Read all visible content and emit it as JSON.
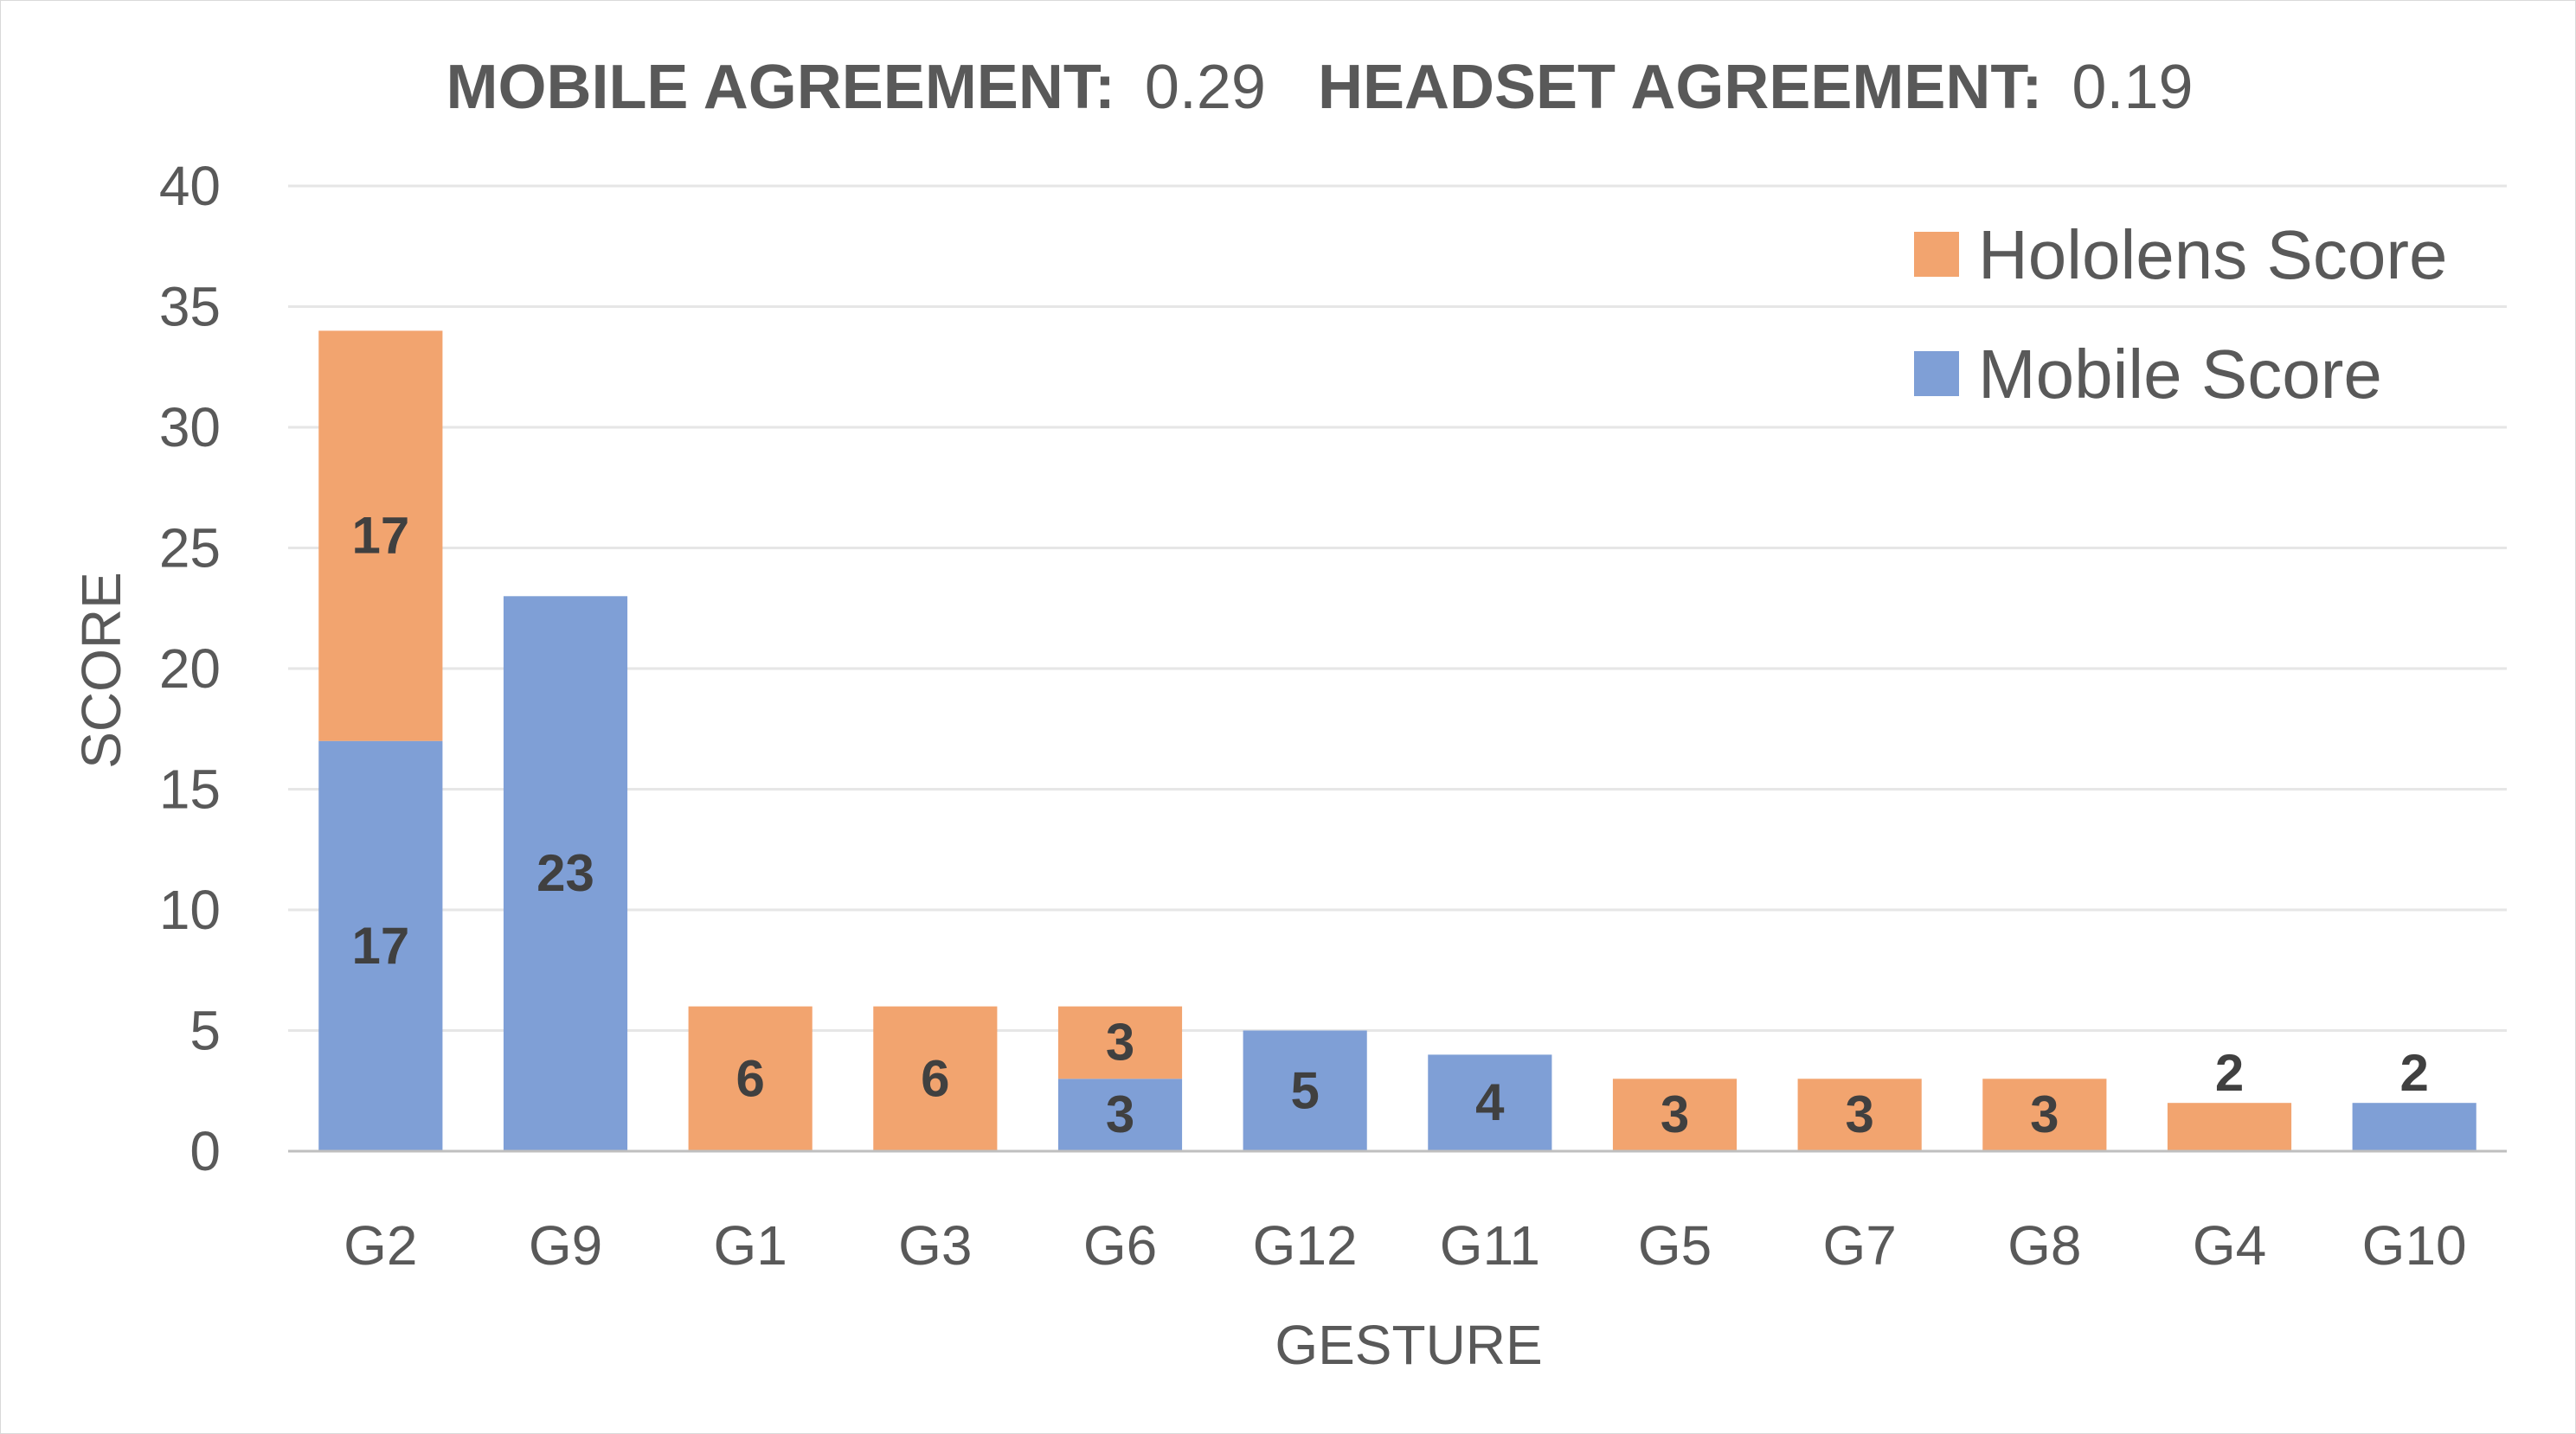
{
  "title": {
    "mobile_label": "MOBILE AGREEMENT:",
    "mobile_value": "0.29",
    "headset_label": "HEADSET AGREEMENT:",
    "headset_value": "0.19"
  },
  "colors": {
    "mobile": "#7f9fd6",
    "hololens": "#f2a46f",
    "gridline": "#e6e6e6",
    "axis": "#bfbfbf",
    "text": "#595959",
    "label": "#404040"
  },
  "chart_data": {
    "type": "bar",
    "stacked": true,
    "categories": [
      "G2",
      "G9",
      "G1",
      "G3",
      "G6",
      "G12",
      "G11",
      "G5",
      "G7",
      "G8",
      "G4",
      "G10"
    ],
    "series": [
      {
        "name": "Mobile Score",
        "values": [
          17,
          23,
          0,
          0,
          3,
          5,
          4,
          0,
          0,
          0,
          0,
          2
        ]
      },
      {
        "name": "Hololens Score",
        "values": [
          17,
          0,
          6,
          6,
          3,
          0,
          0,
          3,
          3,
          3,
          2,
          0
        ]
      }
    ],
    "xlabel": "GESTURE",
    "ylabel": "SCORE",
    "ylim": [
      0,
      40
    ],
    "yticks": [
      0,
      5,
      10,
      15,
      20,
      25,
      30,
      35,
      40
    ],
    "grid": true,
    "legend_position": "top-right",
    "legend_order": [
      "Hololens Score",
      "Mobile Score"
    ]
  }
}
